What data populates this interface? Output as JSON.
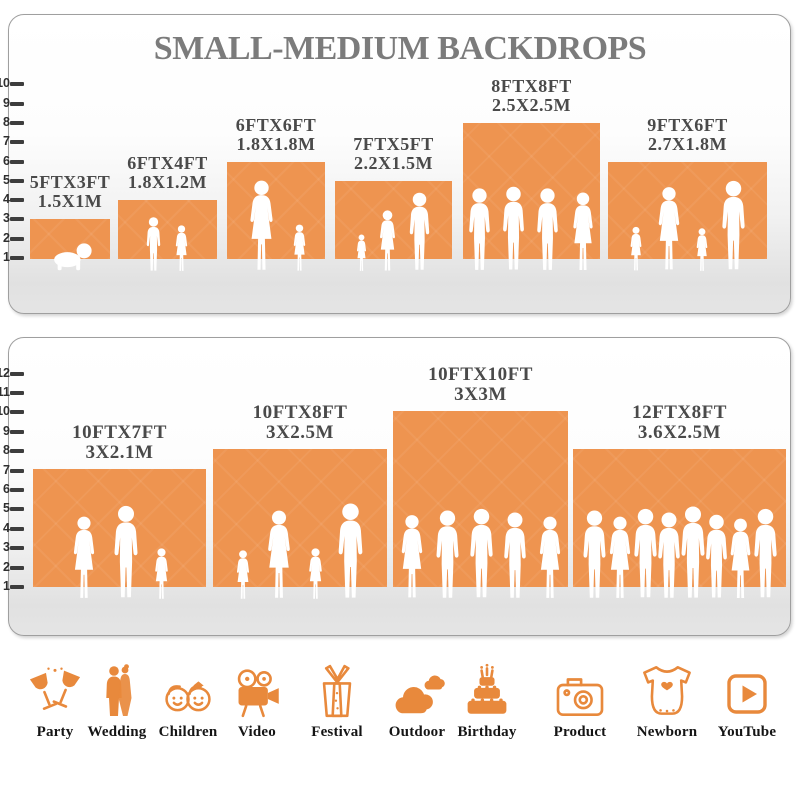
{
  "title": "SMALL-MEDIUM BACKDROPS",
  "colors": {
    "backdrop_orange": "#EE9450",
    "title_gray": "#7B7B7B",
    "label_gray": "#4A4A4A",
    "icon_orange": "#E8893C",
    "silhouette_white": "#FFFFFF"
  },
  "panels": [
    {
      "name": "top-panel",
      "ruler": [
        "10",
        "9",
        "8",
        "7",
        "6",
        "5",
        "4",
        "3",
        "2",
        "1"
      ],
      "backdrops": [
        {
          "size_ft": "5FTX3FT",
          "size_m": "1.5X1M",
          "figures": [
            "baby"
          ]
        },
        {
          "size_ft": "6FTX4FT",
          "size_m": "1.8X1.2M",
          "figures": [
            "boy",
            "girl"
          ]
        },
        {
          "size_ft": "6FTX6FT",
          "size_m": "1.8X1.8M",
          "figures": [
            "woman",
            "girl"
          ]
        },
        {
          "size_ft": "7FTX5FT",
          "size_m": "2.2X1.5M",
          "figures": [
            "girl",
            "woman",
            "man"
          ]
        },
        {
          "size_ft": "8FTX8FT",
          "size_m": "2.5X2.5M",
          "figures": [
            "man",
            "man",
            "man",
            "woman"
          ]
        },
        {
          "size_ft": "9FTX6FT",
          "size_m": "2.7X1.8M",
          "figures": [
            "girl",
            "woman",
            "girl",
            "man"
          ]
        }
      ]
    },
    {
      "name": "bottom-panel",
      "ruler": [
        "12",
        "11",
        "10",
        "9",
        "8",
        "7",
        "6",
        "5",
        "4",
        "3",
        "2",
        "1"
      ],
      "backdrops": [
        {
          "size_ft": "10FTX7FT",
          "size_m": "3X2.1M",
          "figures": [
            "woman",
            "man",
            "girl"
          ]
        },
        {
          "size_ft": "10FTX8FT",
          "size_m": "3X2.5M",
          "figures": [
            "girl",
            "woman",
            "girl",
            "man"
          ]
        },
        {
          "size_ft": "10FTX10FT",
          "size_m": "3X3M",
          "figures": [
            "woman",
            "man",
            "man",
            "man",
            "woman"
          ]
        },
        {
          "size_ft": "12FTX8FT",
          "size_m": "3.6X2.5M",
          "figures": [
            "man",
            "woman",
            "man",
            "man",
            "man",
            "man",
            "woman",
            "man"
          ]
        }
      ]
    }
  ],
  "categories": [
    {
      "icon": "party-icon",
      "label": "Party"
    },
    {
      "icon": "wedding-icon",
      "label": "Wedding"
    },
    {
      "icon": "children-icon",
      "label": "Children"
    },
    {
      "icon": "video-icon",
      "label": "Video"
    },
    {
      "icon": "festival-icon",
      "label": "Festival"
    },
    {
      "icon": "outdoor-icon",
      "label": "Outdoor"
    },
    {
      "icon": "birthday-icon",
      "label": "Birthday"
    },
    {
      "icon": "product-icon",
      "label": "Product"
    },
    {
      "icon": "newborn-icon",
      "label": "Newborn"
    },
    {
      "icon": "youtube-icon",
      "label": "YouTube"
    }
  ]
}
